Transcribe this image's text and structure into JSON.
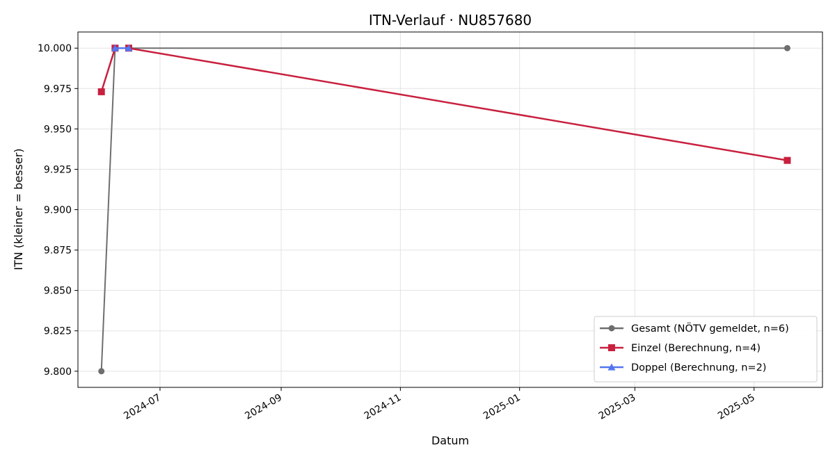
{
  "chart_data": {
    "type": "line",
    "title": "ITN-Verlauf · NU857680",
    "xlabel": "Datum",
    "ylabel": "ITN  (kleiner = besser)",
    "x_axis_type": "date",
    "xlim": [
      "2024-05-20",
      "2025-06-05"
    ],
    "ylim": [
      9.79,
      10.01
    ],
    "x_ticks": [
      "2024-07-01",
      "2024-09-01",
      "2024-11-01",
      "2025-01-01",
      "2025-03-01",
      "2025-05-01"
    ],
    "x_tick_labels": [
      "2024-07",
      "2024-09",
      "2024-11",
      "2025-01",
      "2025-03",
      "2025-05"
    ],
    "y_ticks": [
      9.8,
      9.825,
      9.85,
      9.875,
      9.9,
      9.925,
      9.95,
      9.975,
      10.0
    ],
    "y_tick_labels": [
      "9.800",
      "9.825",
      "9.850",
      "9.875",
      "9.900",
      "9.925",
      "9.950",
      "9.975",
      "10.000"
    ],
    "grid": true,
    "legend_position": "bottom-right",
    "series": [
      {
        "name": "Gesamt (NÖTV gemeldet, n=6)",
        "color": "#6e6e6e",
        "marker": "circle",
        "points": [
          {
            "x": "2024-06-01",
            "y": 9.8
          },
          {
            "x": "2024-06-08",
            "y": 10.0
          },
          {
            "x": "2024-06-15",
            "y": 10.0
          },
          {
            "x": "2025-05-18",
            "y": 10.0
          }
        ]
      },
      {
        "name": "Einzel (Berechnung, n=4)",
        "color": "#c8203e",
        "marker": "square",
        "points": [
          {
            "x": "2024-06-01",
            "y": 9.973
          },
          {
            "x": "2024-06-08",
            "y": 10.0
          },
          {
            "x": "2024-06-15",
            "y": 10.0
          },
          {
            "x": "2025-05-18",
            "y": 9.9305
          }
        ]
      },
      {
        "name": "Doppel (Berechnung, n=2)",
        "color": "#5577ee",
        "marker": "triangle",
        "points": [
          {
            "x": "2024-06-08",
            "y": 10.0
          },
          {
            "x": "2024-06-15",
            "y": 10.0
          }
        ]
      }
    ]
  }
}
